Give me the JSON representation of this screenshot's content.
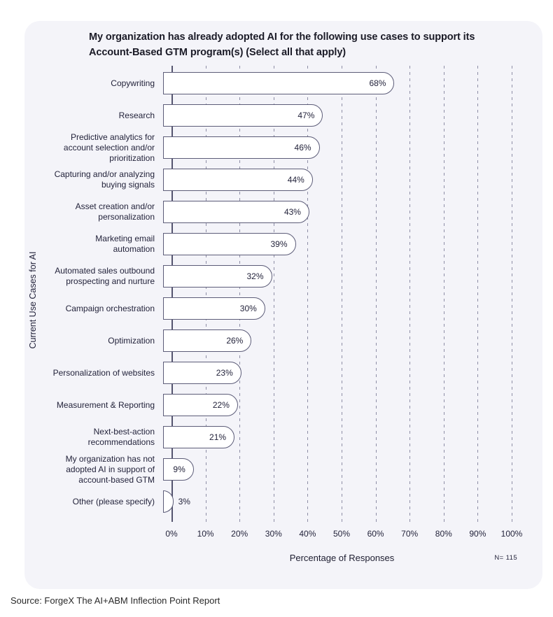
{
  "chart_data": {
    "type": "bar",
    "orientation": "horizontal",
    "title": "My organization has already adopted AI for the following use cases to support its Account-Based GTM program(s) (Select all that apply)",
    "categories": [
      "Copywriting",
      "Research",
      "Predictive analytics for account selection and/or prioritization",
      "Capturing and/or analyzing buying signals",
      "Asset creation and/or personalization",
      "Marketing email automation",
      "Automated sales outbound prospecting and nurture",
      "Campaign orchestration",
      "Optimization",
      "Personalization of websites",
      "Measurement & Reporting",
      "Next-best-action recommendations",
      "My organization has not adopted AI in support of account-based GTM",
      "Other (please specify)"
    ],
    "values": [
      68,
      47,
      46,
      44,
      43,
      39,
      32,
      30,
      26,
      23,
      22,
      21,
      9,
      3
    ],
    "value_suffix": "%",
    "xlabel": "Percentage of Responses",
    "ylabel": "Current Use Cases for AI",
    "xlim": [
      0,
      100
    ],
    "xticks": [
      "0%",
      "10%",
      "20%",
      "30%",
      "40%",
      "50%",
      "60%",
      "70%",
      "80%",
      "90%",
      "100%"
    ],
    "grid": "vertical-dashed",
    "legend": "none",
    "sample_size": "N= 115",
    "colors": {
      "card_background": "#f4f4f9",
      "bar_fill": "#ffffff",
      "bar_border": "#5c5c78",
      "gridline": "#8e8ea6",
      "axis_line": "#55556f",
      "text": "#23233b",
      "title_text": "#1b1b27"
    }
  },
  "footer": {
    "source": "Source: ForgeX The AI+ABM Inflection Point Report"
  }
}
